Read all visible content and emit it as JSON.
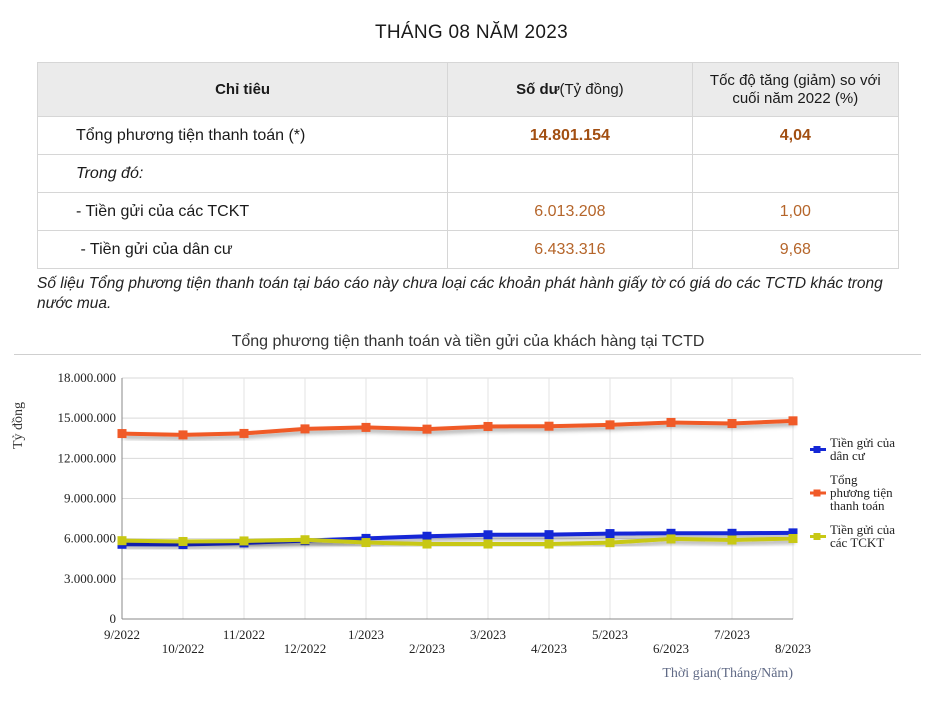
{
  "page": {
    "title": "THÁNG 08 NĂM 2023"
  },
  "table": {
    "headers": {
      "col1": "Chỉ tiêu",
      "col2_bold": "Số dư",
      "col2_unit": "(Tỷ đồng)",
      "col3_line1": "Tốc độ tăng (giảm) so với",
      "col3_line2": "cuối năm 2022 (%)"
    },
    "rows": [
      {
        "label": "Tổng phương tiện thanh toán (*)",
        "value": "14.801.154",
        "growth": "4,04"
      },
      {
        "label": "Trong đó:",
        "value": "",
        "growth": ""
      },
      {
        "label": "- Tiền gửi của các TCKT",
        "value": "6.013.208",
        "growth": "1,00"
      },
      {
        "label": " - Tiền gửi của dân cư",
        "value": "6.433.316",
        "growth": "9,68"
      }
    ]
  },
  "note": "Số liệu Tổng phương tiện thanh toán tại báo cáo này chưa loại các khoản phát hành giấy tờ có giá do các TCTD khác trong nước mua.",
  "chart_data": {
    "type": "line",
    "title": "Tổng phương tiện thanh toán và tiền gửi của khách hàng tại TCTD",
    "xlabel": "Thời gian(Tháng/Năm)",
    "ylabel": "Tỷ đồng",
    "ylim": [
      0,
      18000000
    ],
    "yticks": [
      "0",
      "3.000.000",
      "6.000.000",
      "9.000.000",
      "12.000.000",
      "15.000.000",
      "18.000.000"
    ],
    "ytick_values": [
      0,
      3000000,
      6000000,
      9000000,
      12000000,
      15000000,
      18000000
    ],
    "categories": [
      "9/2022",
      "10/2022",
      "11/2022",
      "12/2022",
      "1/2023",
      "2/2023",
      "3/2023",
      "4/2023",
      "5/2023",
      "6/2023",
      "7/2023",
      "8/2023"
    ],
    "grid": true,
    "legend_position": "right",
    "series": [
      {
        "name_lines": [
          "Tiền gửi của",
          "dân cư"
        ],
        "color": "#1428d6",
        "values": [
          5580000,
          5560000,
          5680000,
          5850000,
          6020000,
          6180000,
          6290000,
          6300000,
          6380000,
          6400000,
          6400000,
          6433316
        ]
      },
      {
        "name_lines": [
          "Tổng",
          "phương tiện",
          "thanh toán"
        ],
        "color": "#f05a28",
        "values": [
          13850000,
          13750000,
          13860000,
          14200000,
          14310000,
          14180000,
          14380000,
          14400000,
          14500000,
          14680000,
          14600000,
          14801154
        ]
      },
      {
        "name_lines": [
          "Tiền gửi của",
          "các TCKT"
        ],
        "color": "#c8c814",
        "values": [
          5850000,
          5790000,
          5830000,
          5920000,
          5710000,
          5600000,
          5600000,
          5600000,
          5700000,
          5980000,
          5900000,
          6013208
        ]
      }
    ]
  }
}
